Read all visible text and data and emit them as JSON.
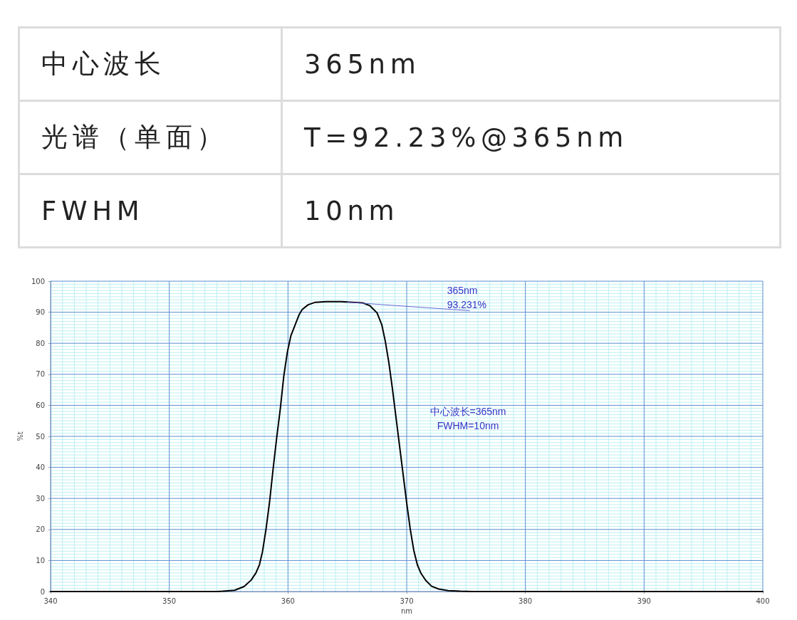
{
  "chart_data": [
    {
      "type": "other",
      "annotations": [
        "中心波长",
        "365nm",
        "光谱（单面）",
        "T=92.23%@365nm",
        "FWHM",
        "10nm"
      ]
    },
    {
      "type": "line",
      "xlabel": "nm",
      "ylabel": "%t",
      "color": "#000000",
      "x": [
        340,
        345,
        350,
        354,
        354.5,
        355.5,
        356.3,
        356.9,
        357.3,
        357.6,
        357.85,
        358.15,
        358.45,
        358.75,
        359.05,
        359.35,
        359.65,
        359.95,
        360.25,
        360.65,
        360.95,
        361.2,
        361.7,
        362.3,
        363.2,
        364.5,
        365,
        365.5,
        366.3,
        366.9,
        367.5,
        367.9,
        368.2,
        368.5,
        368.8,
        369.1,
        369.4,
        369.7,
        370,
        370.3,
        370.6,
        370.9,
        371.2,
        371.6,
        372.1,
        372.7,
        373.5,
        374.5,
        375.5,
        380,
        390,
        400
      ],
      "values": [
        0,
        0,
        0,
        0,
        0.1,
        0.4,
        1.6,
        3.7,
        6,
        8.7,
        12.8,
        20.1,
        28.9,
        39.6,
        49.6,
        58.8,
        69.5,
        77.2,
        82.5,
        86.4,
        89.3,
        90.9,
        92.4,
        93.2,
        93.4,
        93.4,
        93.3,
        93.2,
        93,
        92.1,
        89.8,
        86,
        80.6,
        73.7,
        65.3,
        56.1,
        46.9,
        37.7,
        28.5,
        20.1,
        13.2,
        8.6,
        5.9,
        3.6,
        1.7,
        0.8,
        0.3,
        0.1,
        0,
        0,
        0,
        0
      ],
      "xlim": [
        340,
        400
      ],
      "ylim": [
        0,
        100
      ],
      "xticks": [
        340,
        {
          "value": 341,
          "label": null
        },
        {
          "value": 342,
          "label": null
        },
        {
          "value": 343,
          "label": null
        },
        {
          "value": 344,
          "label": null
        },
        {
          "value": 345,
          "label": null
        },
        {
          "value": 346,
          "label": null
        },
        {
          "value": 347,
          "label": null
        },
        {
          "value": 348,
          "label": null
        },
        {
          "value": 349,
          "label": null
        },
        350,
        {
          "value": 351,
          "label": null
        },
        {
          "value": 352,
          "label": null
        },
        {
          "value": 353,
          "label": null
        },
        {
          "value": 354,
          "label": null
        },
        {
          "value": 355,
          "label": null
        },
        {
          "value": 356,
          "label": null
        },
        {
          "value": 357,
          "label": null
        },
        {
          "value": 358,
          "label": null
        },
        {
          "value": 359,
          "label": null
        },
        360,
        {
          "value": 361,
          "label": null
        },
        {
          "value": 362,
          "label": null
        },
        {
          "value": 363,
          "label": null
        },
        {
          "value": 364,
          "label": null
        },
        {
          "value": 365,
          "label": null
        },
        {
          "value": 366,
          "label": null
        },
        {
          "value": 367,
          "label": null
        },
        {
          "value": 368,
          "label": null
        },
        {
          "value": 369,
          "label": null
        },
        370,
        {
          "value": 371,
          "label": null
        },
        {
          "value": 372,
          "label": null
        },
        {
          "value": 373,
          "label": null
        },
        {
          "value": 374,
          "label": null
        },
        {
          "value": 375,
          "label": null
        },
        {
          "value": 376,
          "label": null
        },
        {
          "value": 377,
          "label": null
        },
        {
          "value": 378,
          "label": null
        },
        {
          "value": 379,
          "label": null
        },
        380,
        {
          "value": 381,
          "label": null
        },
        {
          "value": 382,
          "label": null
        },
        {
          "value": 383,
          "label": null
        },
        {
          "value": 384,
          "label": null
        },
        {
          "value": 385,
          "label": null
        },
        {
          "value": 386,
          "label": null
        },
        {
          "value": 387,
          "label": null
        },
        {
          "value": 388,
          "label": null
        },
        {
          "value": 389,
          "label": null
        },
        390,
        {
          "value": 391,
          "label": null
        },
        {
          "value": 392,
          "label": null
        },
        {
          "value": 393,
          "label": null
        },
        {
          "value": 394,
          "label": null
        },
        {
          "value": 395,
          "label": null
        },
        {
          "value": 396,
          "label": null
        },
        {
          "value": 397,
          "label": null
        },
        {
          "value": 398,
          "label": null
        },
        {
          "value": 399,
          "label": null
        },
        400
      ],
      "yticks": [
        0,
        {
          "value": 1,
          "label": null
        },
        {
          "value": 2,
          "label": null
        },
        {
          "value": 3,
          "label": null
        },
        {
          "value": 4,
          "label": null
        },
        {
          "value": 5,
          "label": null
        },
        {
          "value": 6,
          "label": null
        },
        {
          "value": 7,
          "label": null
        },
        {
          "value": 8,
          "label": null
        },
        {
          "value": 9,
          "label": null
        },
        10,
        {
          "value": 11,
          "label": null
        },
        {
          "value": 12,
          "label": null
        },
        {
          "value": 13,
          "label": null
        },
        {
          "value": 14,
          "label": null
        },
        {
          "value": 15,
          "label": null
        },
        {
          "value": 16,
          "label": null
        },
        {
          "value": 17,
          "label": null
        },
        {
          "value": 18,
          "label": null
        },
        {
          "value": 19,
          "label": null
        },
        20,
        {
          "value": 21,
          "label": null
        },
        {
          "value": 22,
          "label": null
        },
        {
          "value": 23,
          "label": null
        },
        {
          "value": 24,
          "label": null
        },
        {
          "value": 25,
          "label": null
        },
        {
          "value": 26,
          "label": null
        },
        {
          "value": 27,
          "label": null
        },
        {
          "value": 28,
          "label": null
        },
        {
          "value": 29,
          "label": null
        },
        30,
        {
          "value": 31,
          "label": null
        },
        {
          "value": 32,
          "label": null
        },
        {
          "value": 33,
          "label": null
        },
        {
          "value": 34,
          "label": null
        },
        {
          "value": 35,
          "label": null
        },
        {
          "value": 36,
          "label": null
        },
        {
          "value": 37,
          "label": null
        },
        {
          "value": 38,
          "label": null
        },
        {
          "value": 39,
          "label": null
        },
        40,
        {
          "value": 41,
          "label": null
        },
        {
          "value": 42,
          "label": null
        },
        {
          "value": 43,
          "label": null
        },
        {
          "value": 44,
          "label": null
        },
        {
          "value": 45,
          "label": null
        },
        {
          "value": 46,
          "label": null
        },
        {
          "value": 47,
          "label": null
        },
        {
          "value": 48,
          "label": null
        },
        {
          "value": 49,
          "label": null
        },
        50,
        {
          "value": 51,
          "label": null
        },
        {
          "value": 52,
          "label": null
        },
        {
          "value": 53,
          "label": null
        },
        {
          "value": 54,
          "label": null
        },
        {
          "value": 55,
          "label": null
        },
        {
          "value": 56,
          "label": null
        },
        {
          "value": 57,
          "label": null
        },
        {
          "value": 58,
          "label": null
        },
        {
          "value": 59,
          "label": null
        },
        60,
        {
          "value": 61,
          "label": null
        },
        {
          "value": 62,
          "label": null
        },
        {
          "value": 63,
          "label": null
        },
        {
          "value": 64,
          "label": null
        },
        {
          "value": 65,
          "label": null
        },
        {
          "value": 66,
          "label": null
        },
        {
          "value": 67,
          "label": null
        },
        {
          "value": 68,
          "label": null
        },
        {
          "value": 69,
          "label": null
        },
        70,
        {
          "value": 71,
          "label": null
        },
        {
          "value": 72,
          "label": null
        },
        {
          "value": 73,
          "label": null
        },
        {
          "value": 74,
          "label": null
        },
        {
          "value": 75,
          "label": null
        },
        {
          "value": 76,
          "label": null
        },
        {
          "value": 77,
          "label": null
        },
        {
          "value": 78,
          "label": null
        },
        {
          "value": 79,
          "label": null
        },
        80,
        {
          "value": 81,
          "label": null
        },
        {
          "value": 82,
          "label": null
        },
        {
          "value": 83,
          "label": null
        },
        {
          "value": 84,
          "label": null
        },
        {
          "value": 85,
          "label": null
        },
        {
          "value": 86,
          "label": null
        },
        {
          "value": 87,
          "label": null
        },
        {
          "value": 88,
          "label": null
        },
        {
          "value": 89,
          "label": null
        },
        90,
        {
          "value": 91,
          "label": null
        },
        {
          "value": 92,
          "label": null
        },
        {
          "value": 93,
          "label": null
        },
        {
          "value": 94,
          "label": null
        },
        {
          "value": 95,
          "label": null
        },
        {
          "value": 96,
          "label": null
        },
        {
          "value": 97,
          "label": null
        },
        {
          "value": 98,
          "label": null
        },
        {
          "value": 99,
          "label": null
        },
        100
      ],
      "grid": true,
      "annotations": [
        {
          "text": "365nm\n93.231%",
          "x": 365,
          "y": 93.231
        },
        "中心波长=365nm\nFWHM=10nm"
      ]
    }
  ]
}
